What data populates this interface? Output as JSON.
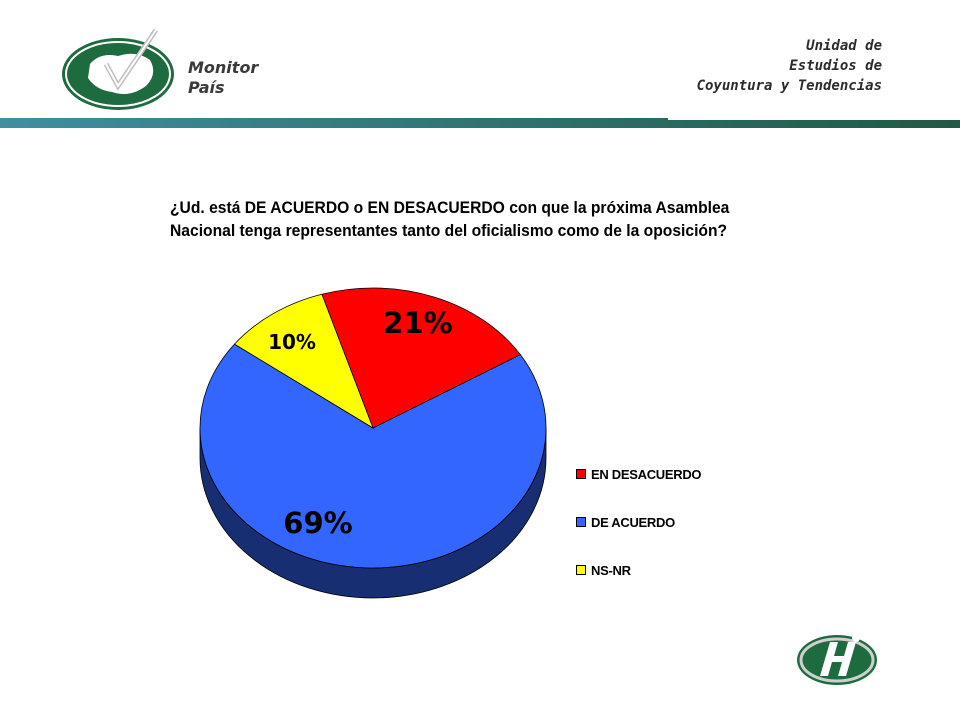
{
  "header": {
    "brand_line1": "Monitor",
    "brand_line2": "País",
    "unit_line1": "Unidad de",
    "unit_line2": "Estudios de",
    "unit_line3": "Coyuntura y Tendencias"
  },
  "colors": {
    "band_left": "#3f8fa0",
    "band_right": "#1f5a45",
    "logo_green": "#1e6b3f"
  },
  "chart_data": {
    "type": "pie",
    "title": "¿Ud. está DE ACUERDO o EN DESACUERDO con que la próxima Asamblea Nacional tenga representantes tanto del oficialismo como de la oposición?",
    "style": "3d",
    "slices": [
      {
        "label": "EN DESACUERDO",
        "value": 21,
        "value_label": "21%",
        "color": "#ff0000"
      },
      {
        "label": "DE ACUERDO",
        "value": 69,
        "value_label": "69%",
        "color": "#3366ff"
      },
      {
        "label": "NS-NR",
        "value": 10,
        "value_label": "10%",
        "color": "#ffff00"
      }
    ],
    "legend_position": "right-bottom"
  }
}
